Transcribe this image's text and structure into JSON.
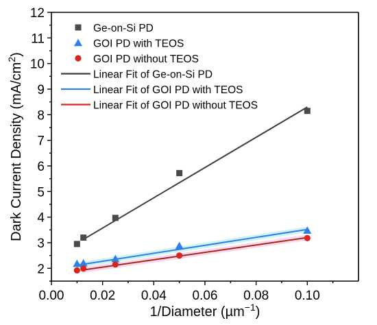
{
  "chart_data": {
    "type": "scatter",
    "xlabel": "1/Diameter (µm",
    "xlabel_sup": "−1",
    "xlabel_close": ")",
    "ylabel": "Dark Current Density (mA/cm",
    "ylabel_sup": "2",
    "ylabel_close": ")",
    "xlim": [
      0.0,
      0.12
    ],
    "ylim": [
      1.5,
      12
    ],
    "xticks": [
      "0.00",
      "0.02",
      "0.04",
      "0.06",
      "0.08",
      "0.10"
    ],
    "xtick_values": [
      0.0,
      0.02,
      0.04,
      0.06,
      0.08,
      0.1
    ],
    "yticks": [
      "2",
      "3",
      "4",
      "5",
      "6",
      "7",
      "8",
      "9",
      "10",
      "11",
      "12"
    ],
    "ytick_values": [
      2,
      3,
      4,
      5,
      6,
      7,
      8,
      9,
      10,
      11,
      12
    ],
    "legend_position": "top-left",
    "series": [
      {
        "name": "Ge-on-Si PD",
        "marker": "square",
        "color": "#4a4a4a",
        "x": [
          0.01,
          0.0125,
          0.025,
          0.05,
          0.1
        ],
        "y": [
          2.95,
          3.2,
          3.97,
          5.72,
          8.15
        ]
      },
      {
        "name": "GOI PD with TEOS",
        "marker": "triangle",
        "color": "#2f7fe8",
        "x": [
          0.01,
          0.0125,
          0.025,
          0.05,
          0.1
        ],
        "y": [
          2.18,
          2.2,
          2.37,
          2.88,
          3.48
        ]
      },
      {
        "name": "GOI PD without TEOS",
        "marker": "circle",
        "color": "#d7261e",
        "x": [
          0.01,
          0.0125,
          0.025,
          0.05,
          0.1
        ],
        "y": [
          1.92,
          1.99,
          2.15,
          2.5,
          3.18
        ]
      }
    ],
    "fits": [
      {
        "name": "Linear Fit of Ge-on-Si PD",
        "color": "#3d3d3d",
        "x": [
          0.012,
          0.1
        ],
        "y": [
          3.1,
          8.3
        ],
        "band": false
      },
      {
        "name": "Linear Fit of GOI PD with TEOS",
        "color": "#2f7fe8",
        "x": [
          0.01,
          0.1
        ],
        "y": [
          2.12,
          3.52
        ],
        "band": true,
        "band_color": "#a7e9ec"
      },
      {
        "name": "Linear Fit of GOI PD without TEOS",
        "color": "#d7261e",
        "x": [
          0.012,
          0.1
        ],
        "y": [
          1.93,
          3.2
        ],
        "band": true,
        "band_color": "#f7b8de"
      }
    ]
  }
}
